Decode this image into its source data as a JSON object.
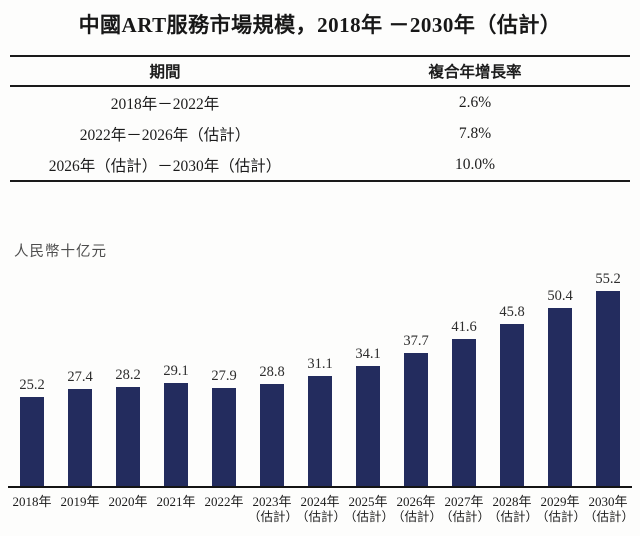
{
  "title": "中國ART服務市場規模，2018年 －2030年（估計）",
  "table": {
    "header_period": "期間",
    "header_cagr": "複合年增長率",
    "rows": [
      {
        "period": "2018年－2022年",
        "cagr": "2.6%"
      },
      {
        "period": "2022年－2026年（估計）",
        "cagr": "7.8%"
      },
      {
        "period": "2026年（估計）－2030年（估計）",
        "cagr": "10.0%"
      }
    ]
  },
  "chart": {
    "unit_label": "人民幣十亿元",
    "bar_color": "#232c5e",
    "bars": [
      {
        "year": "2018年",
        "note": "",
        "value": "25.2"
      },
      {
        "year": "2019年",
        "note": "",
        "value": "27.4"
      },
      {
        "year": "2020年",
        "note": "",
        "value": "28.2"
      },
      {
        "year": "2021年",
        "note": "",
        "value": "29.1"
      },
      {
        "year": "2022年",
        "note": "",
        "value": "27.9"
      },
      {
        "year": "2023年",
        "note": "（估計）",
        "value": "28.8"
      },
      {
        "year": "2024年",
        "note": "（估計）",
        "value": "31.1"
      },
      {
        "year": "2025年",
        "note": "（估計）",
        "value": "34.1"
      },
      {
        "year": "2026年",
        "note": "（估計）",
        "value": "37.7"
      },
      {
        "year": "2027年",
        "note": "（估計）",
        "value": "41.6"
      },
      {
        "year": "2028年",
        "note": "（估計）",
        "value": "45.8"
      },
      {
        "year": "2029年",
        "note": "（估計）",
        "value": "50.4"
      },
      {
        "year": "2030年",
        "note": "（估計）",
        "value": "55.2"
      }
    ]
  },
  "chart_data": {
    "type": "bar",
    "title": "中國ART服務市場規模，2018年－2030年（估計）",
    "xlabel": "",
    "ylabel": "人民幣十亿元",
    "categories": [
      "2018年",
      "2019年",
      "2020年",
      "2021年",
      "2022年",
      "2023年（估計）",
      "2024年（估計）",
      "2025年（估計）",
      "2026年（估計）",
      "2027年（估計）",
      "2028年（估計）",
      "2029年（估計）",
      "2030年（估計）"
    ],
    "values": [
      25.2,
      27.4,
      28.2,
      29.1,
      27.9,
      28.8,
      31.1,
      34.1,
      37.7,
      41.6,
      45.8,
      50.4,
      55.2
    ],
    "ylim": [
      0,
      60
    ],
    "grid": false,
    "legend": false,
    "data_labels": true,
    "cagr_table": [
      {
        "period": "2018-2022",
        "cagr_pct": 2.6
      },
      {
        "period": "2022-2026E",
        "cagr_pct": 7.8
      },
      {
        "period": "2026E-2030E",
        "cagr_pct": 10.0
      }
    ]
  }
}
